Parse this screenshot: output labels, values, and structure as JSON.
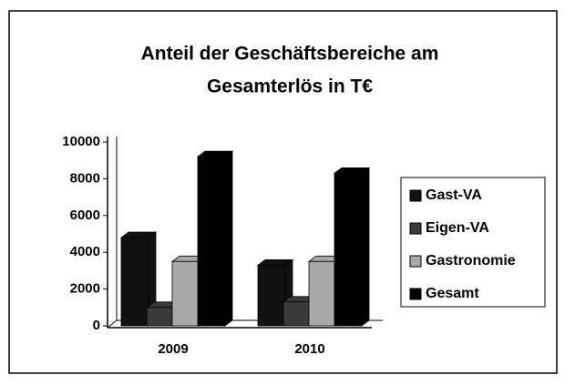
{
  "chart_data": {
    "type": "bar",
    "title": "Anteil der Geschäftsbereiche am",
    "subtitle": "Gesamterlös in T€",
    "categories": [
      "2009",
      "2010"
    ],
    "series": [
      {
        "name": "Gast-VA",
        "color": "#111111",
        "values": [
          4800,
          3300
        ]
      },
      {
        "name": "Eigen-VA",
        "color": "#3a3a3a",
        "values": [
          1000,
          1300
        ]
      },
      {
        "name": "Gastronomie",
        "color": "#a8a8a8",
        "values": [
          3500,
          3500
        ]
      },
      {
        "name": "Gesamt",
        "color": "#000000",
        "values": [
          9200,
          8300
        ]
      }
    ],
    "ylim": [
      0,
      10000
    ],
    "yticks": [
      0,
      2000,
      4000,
      6000,
      8000,
      10000
    ]
  }
}
